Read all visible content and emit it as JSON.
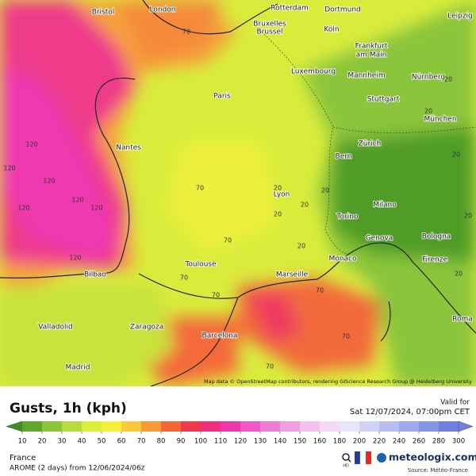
{
  "map": {
    "cities": [
      "Bristol",
      "London",
      "Rotterdam",
      "Dortmund",
      "Leipzig",
      "Bruxelles",
      "Brussel",
      "Köln",
      "Frankfurt",
      "am Main",
      "Luxembourg",
      "Mannheim",
      "Nürnberg",
      "Paris",
      "Stuttgart",
      "München",
      "Nantes",
      "Zürich",
      "Bern",
      "Lyon",
      "Milano",
      "Torino",
      "Genova",
      "Bologna",
      "Monaco",
      "Firenze",
      "Toulouse",
      "Bilbao",
      "Marseille",
      "Valladolid",
      "Zaragoza",
      "Roma",
      "Barcelona",
      "Madrid"
    ],
    "contour_labels": [
      120,
      120,
      120,
      120,
      120,
      120,
      120,
      70,
      70,
      70,
      70,
      70,
      70,
      70,
      70,
      20,
      20,
      20,
      20,
      20,
      20,
      20,
      20,
      20,
      20
    ],
    "attribution": "Map data © OpenStreetMap contributors, rendering GIScience Research Group @ Heidelberg University"
  },
  "legend": {
    "title": "Gusts, 1h (kph)",
    "valid_label": "Valid for",
    "valid_time": "Sat 12/07/2024, 07:00pm CET",
    "stops": [
      {
        "value": 10,
        "color": "#3f8f1f"
      },
      {
        "value": 20,
        "color": "#5ea82b"
      },
      {
        "value": 30,
        "color": "#8ac53a"
      },
      {
        "value": 40,
        "color": "#b6dc3f"
      },
      {
        "value": 50,
        "color": "#dcee3c"
      },
      {
        "value": 60,
        "color": "#f5f13a"
      },
      {
        "value": 70,
        "color": "#f8c93b"
      },
      {
        "value": 80,
        "color": "#f69a38"
      },
      {
        "value": 90,
        "color": "#f26735"
      },
      {
        "value": 100,
        "color": "#ee3a4c"
      },
      {
        "value": 110,
        "color": "#ef2f7c"
      },
      {
        "value": 120,
        "color": "#f037a8"
      },
      {
        "value": 130,
        "color": "#ef58c6"
      },
      {
        "value": 140,
        "color": "#ef7cd7"
      },
      {
        "value": 150,
        "color": "#f09fe3"
      },
      {
        "value": 160,
        "color": "#f2c1ed"
      },
      {
        "value": 180,
        "color": "#f3dcf3"
      },
      {
        "value": 200,
        "color": "#e6e6f8"
      },
      {
        "value": 220,
        "color": "#cfd3f4"
      },
      {
        "value": 240,
        "color": "#b7bff0"
      },
      {
        "value": 260,
        "color": "#9eaaec"
      },
      {
        "value": 280,
        "color": "#8696e6"
      },
      {
        "value": 300,
        "color": "#6f80e0"
      }
    ]
  },
  "footer": {
    "region": "France",
    "model": "AROME (2 days)  from  12/06/2024/06z",
    "hd": "HD",
    "brand": "meteologix.com",
    "source": "Source: Météo-France"
  }
}
